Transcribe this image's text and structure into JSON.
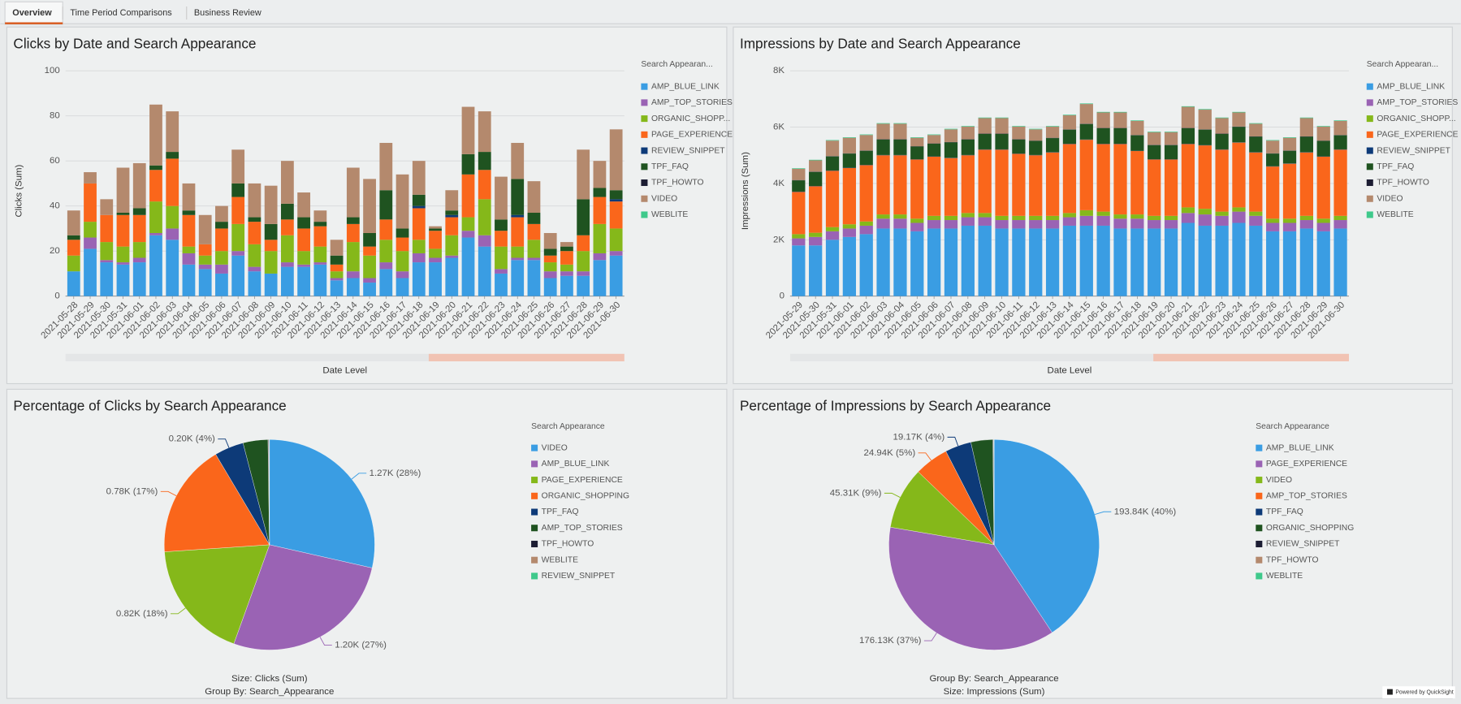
{
  "tabs": [
    "Overview",
    "Time Period Comparisons",
    "Business Review"
  ],
  "footer": "Powered by QuickSight",
  "chart_data": [
    {
      "type": "bar",
      "stacked": true,
      "title": "Clicks by Date and Search Appearance",
      "xlabel": "Date Level",
      "ylabel": "Clicks (Sum)",
      "legend_title": "Search Appearan...",
      "legend": "right",
      "grid": true,
      "ylim": [
        0,
        100
      ],
      "yticks": [
        0,
        20,
        40,
        60,
        80,
        100
      ],
      "categories": [
        "2021-05-28",
        "2021-05-29",
        "2021-05-30",
        "2021-05-31",
        "2021-06-01",
        "2021-06-02",
        "2021-06-03",
        "2021-06-04",
        "2021-06-05",
        "2021-06-06",
        "2021-06-07",
        "2021-06-08",
        "2021-06-09",
        "2021-06-10",
        "2021-06-11",
        "2021-06-12",
        "2021-06-13",
        "2021-06-14",
        "2021-06-15",
        "2021-06-16",
        "2021-06-17",
        "2021-06-18",
        "2021-06-19",
        "2021-06-20",
        "2021-06-21",
        "2021-06-22",
        "2021-06-23",
        "2021-06-24",
        "2021-06-25",
        "2021-06-26",
        "2021-06-27",
        "2021-06-28",
        "2021-06-29",
        "2021-06-30"
      ],
      "series": [
        {
          "name": "AMP_BLUE_LINK",
          "color": "#3a9de3",
          "values": [
            11,
            21,
            15,
            14,
            15,
            27,
            25,
            14,
            12,
            10,
            18,
            11,
            10,
            13,
            13,
            14,
            7,
            8,
            6,
            12,
            8,
            15,
            15,
            17,
            26,
            22,
            10,
            16,
            16,
            8,
            9,
            9,
            16,
            18
          ]
        },
        {
          "name": "AMP_TOP_STORIES",
          "color": "#9a63b4",
          "values": [
            0,
            5,
            1,
            1,
            2,
            1,
            5,
            5,
            2,
            4,
            2,
            2,
            0,
            2,
            1,
            1,
            1,
            3,
            2,
            3,
            3,
            4,
            2,
            1,
            3,
            5,
            2,
            1,
            1,
            3,
            2,
            2,
            3,
            2
          ]
        },
        {
          "name": "ORGANIC_SHOPP...",
          "color": "#85b81a",
          "values": [
            7,
            7,
            8,
            7,
            7,
            14,
            10,
            3,
            4,
            6,
            12,
            10,
            10,
            12,
            6,
            7,
            3,
            13,
            10,
            10,
            9,
            6,
            4,
            9,
            6,
            16,
            10,
            5,
            8,
            4,
            3,
            9,
            13,
            10
          ]
        },
        {
          "name": "PAGE_EXPERIENCE",
          "color": "#fa661b",
          "values": [
            7,
            17,
            12,
            14,
            12,
            14,
            21,
            14,
            5,
            10,
            12,
            10,
            5,
            7,
            10,
            9,
            3,
            8,
            4,
            9,
            6,
            14,
            8,
            8,
            19,
            13,
            7,
            13,
            7,
            3,
            6,
            7,
            12,
            12
          ]
        },
        {
          "name": "REVIEW_SNIPPET",
          "color": "#0d3a78",
          "values": [
            0,
            0,
            0,
            0,
            0,
            0,
            0,
            0,
            0,
            0,
            0,
            0,
            0,
            0,
            0,
            0,
            0,
            0,
            0,
            0,
            0,
            1,
            0,
            1,
            0,
            0,
            0,
            1,
            0,
            0,
            0,
            0,
            0,
            1
          ]
        },
        {
          "name": "TPF_FAQ",
          "color": "#1f5320",
          "values": [
            2,
            0,
            0,
            1,
            3,
            2,
            3,
            2,
            0,
            3,
            6,
            2,
            7,
            7,
            5,
            2,
            4,
            3,
            6,
            13,
            4,
            5,
            1,
            2,
            9,
            8,
            5,
            16,
            5,
            3,
            2,
            16,
            4,
            4
          ]
        },
        {
          "name": "TPF_HOWTO",
          "color": "#1c1d33",
          "values": [
            0,
            0,
            0,
            0,
            0,
            0,
            0,
            0,
            0,
            0,
            0,
            0,
            0,
            0,
            0,
            0,
            0,
            0,
            0,
            0,
            0,
            0,
            0,
            0,
            0,
            0,
            0,
            0,
            0,
            0,
            0,
            0,
            0,
            0
          ]
        },
        {
          "name": "VIDEO",
          "color": "#b4896d",
          "values": [
            11,
            5,
            7,
            20,
            20,
            27,
            18,
            12,
            13,
            7,
            15,
            15,
            17,
            19,
            11,
            5,
            7,
            22,
            24,
            21,
            24,
            15,
            1,
            9,
            21,
            18,
            19,
            16,
            14,
            7,
            2,
            22,
            12,
            27
          ]
        },
        {
          "name": "WEBLITE",
          "color": "#3fc98b",
          "values": [
            0,
            0,
            0,
            0,
            0,
            0,
            0,
            0,
            0,
            0,
            0,
            0,
            0,
            0,
            0,
            0,
            0,
            0,
            0,
            0,
            0,
            0,
            0,
            0,
            0,
            0,
            0,
            0,
            0,
            0,
            0,
            0,
            0,
            0
          ]
        }
      ]
    },
    {
      "type": "bar",
      "stacked": true,
      "title": "Impressions by Date and Search Appearance",
      "xlabel": "Date Level",
      "ylabel": "Impressions (Sum)",
      "legend_title": "Search Appearan...",
      "legend": "right",
      "grid": true,
      "ylim": [
        0,
        8000
      ],
      "yticks": [
        0,
        {
          "value": 2000,
          "label": "2K"
        },
        {
          "value": 4000,
          "label": "4K"
        },
        {
          "value": 6000,
          "label": "6K"
        },
        {
          "value": 8000,
          "label": "8K"
        }
      ],
      "categories": [
        "2021-05-29",
        "2021-05-30",
        "2021-05-31",
        "2021-06-01",
        "2021-06-02",
        "2021-06-03",
        "2021-06-04",
        "2021-06-05",
        "2021-06-06",
        "2021-06-07",
        "2021-06-08",
        "2021-06-09",
        "2021-06-10",
        "2021-06-11",
        "2021-06-12",
        "2021-06-13",
        "2021-06-14",
        "2021-06-15",
        "2021-06-16",
        "2021-06-17",
        "2021-06-18",
        "2021-06-19",
        "2021-06-20",
        "2021-06-21",
        "2021-06-22",
        "2021-06-23",
        "2021-06-24",
        "2021-06-25",
        "2021-06-26",
        "2021-06-27",
        "2021-06-28",
        "2021-06-29",
        "2021-06-30"
      ],
      "series": [
        {
          "name": "AMP_BLUE_LINK",
          "color": "#3a9de3",
          "values": [
            1800,
            1800,
            2000,
            2100,
            2200,
            2400,
            2400,
            2300,
            2400,
            2400,
            2500,
            2500,
            2400,
            2400,
            2400,
            2400,
            2500,
            2500,
            2500,
            2400,
            2400,
            2400,
            2400,
            2600,
            2500,
            2500,
            2600,
            2500,
            2300,
            2300,
            2400,
            2300,
            2400
          ]
        },
        {
          "name": "AMP_TOP_STORIES",
          "color": "#9a63b4",
          "values": [
            250,
            300,
            300,
            300,
            300,
            350,
            350,
            300,
            300,
            300,
            300,
            300,
            300,
            300,
            300,
            300,
            300,
            350,
            350,
            350,
            350,
            300,
            300,
            350,
            400,
            350,
            400,
            350,
            300,
            300,
            300,
            300,
            300
          ]
        },
        {
          "name": "ORGANIC_SHOPP...",
          "color": "#85b81a",
          "values": [
            150,
            150,
            150,
            150,
            150,
            150,
            150,
            150,
            150,
            150,
            150,
            150,
            150,
            150,
            150,
            150,
            150,
            200,
            150,
            150,
            150,
            150,
            150,
            200,
            200,
            150,
            150,
            150,
            150,
            150,
            150,
            150,
            150
          ]
        },
        {
          "name": "PAGE_EXPERIENCE",
          "color": "#fa661b",
          "values": [
            1500,
            1650,
            2000,
            2000,
            2000,
            2100,
            2100,
            2100,
            2100,
            2050,
            2050,
            2250,
            2350,
            2200,
            2150,
            2250,
            2450,
            2500,
            2400,
            2500,
            2250,
            2000,
            2000,
            2250,
            2250,
            2200,
            2300,
            2100,
            1850,
            1950,
            2250,
            2200,
            2350
          ]
        },
        {
          "name": "REVIEW_SNIPPET",
          "color": "#0d3a78",
          "values": [
            10,
            10,
            10,
            10,
            10,
            10,
            10,
            10,
            10,
            10,
            10,
            10,
            10,
            10,
            10,
            10,
            10,
            10,
            10,
            10,
            10,
            10,
            10,
            10,
            10,
            10,
            10,
            10,
            10,
            10,
            10,
            10,
            10
          ]
        },
        {
          "name": "TPF_FAQ",
          "color": "#1f5320",
          "values": [
            400,
            500,
            500,
            500,
            500,
            550,
            550,
            450,
            450,
            550,
            550,
            550,
            550,
            500,
            500,
            500,
            500,
            550,
            550,
            550,
            550,
            500,
            500,
            550,
            550,
            550,
            550,
            550,
            450,
            450,
            550,
            550,
            500
          ]
        },
        {
          "name": "TPF_HOWTO",
          "color": "#1c1d33",
          "values": [
            10,
            10,
            10,
            10,
            10,
            10,
            10,
            10,
            10,
            10,
            10,
            10,
            10,
            10,
            10,
            10,
            10,
            10,
            10,
            10,
            10,
            10,
            10,
            10,
            10,
            10,
            10,
            10,
            10,
            10,
            10,
            10,
            10
          ]
        },
        {
          "name": "VIDEO",
          "color": "#b4896d",
          "values": [
            400,
            400,
            550,
            550,
            550,
            550,
            550,
            300,
            300,
            450,
            450,
            550,
            550,
            450,
            400,
            400,
            500,
            700,
            550,
            550,
            500,
            450,
            450,
            750,
            700,
            550,
            500,
            450,
            450,
            450,
            650,
            500,
            500
          ]
        },
        {
          "name": "WEBLITE",
          "color": "#3fc98b",
          "values": [
            20,
            20,
            20,
            20,
            20,
            20,
            20,
            20,
            20,
            20,
            20,
            20,
            20,
            20,
            20,
            20,
            20,
            20,
            20,
            20,
            20,
            20,
            20,
            20,
            20,
            20,
            20,
            20,
            20,
            20,
            20,
            20,
            20
          ]
        }
      ]
    },
    {
      "type": "pie",
      "title": "Percentage of Clicks by Search Appearance",
      "legend_title": "Search Appearance",
      "legend": "right",
      "categories": [
        "VIDEO",
        "AMP_BLUE_LINK",
        "PAGE_EXPERIENCE",
        "ORGANIC_SHOPPING",
        "TPF_FAQ",
        "AMP_TOP_STORIES",
        "TPF_HOWTO",
        "WEBLITE",
        "REVIEW_SNIPPET"
      ],
      "values": [
        1270,
        1200,
        820,
        780,
        200,
        170,
        5,
        3,
        2
      ],
      "value_labels": [
        "1.27K (28%)",
        "1.20K (27%)",
        "0.82K (18%)",
        "0.78K (17%)",
        "0.20K (4%)",
        null,
        null,
        null,
        null
      ],
      "colors": [
        "#3a9de3",
        "#9a63b4",
        "#85b81a",
        "#fa661b",
        "#0d3a78",
        "#1f5320",
        "#1c1d33",
        "#b4896d",
        "#3fc98b"
      ],
      "footnotes": [
        "Size: Clicks (Sum)",
        "Group By: Search_Appearance"
      ]
    },
    {
      "type": "pie",
      "title": "Percentage of Impressions by Search Appearance",
      "legend_title": "Search Appearance",
      "legend": "right",
      "categories": [
        "AMP_BLUE_LINK",
        "PAGE_EXPERIENCE",
        "VIDEO",
        "AMP_TOP_STORIES",
        "TPF_FAQ",
        "ORGANIC_SHOPPING",
        "REVIEW_SNIPPET",
        "TPF_HOWTO",
        "WEBLITE"
      ],
      "values": [
        193840,
        176130,
        45310,
        24940,
        19170,
        16000,
        500,
        300,
        100
      ],
      "value_labels": [
        "193.84K (40%)",
        "176.13K (37%)",
        "45.31K (9%)",
        "24.94K (5%)",
        "19.17K (4%)",
        null,
        null,
        null,
        null
      ],
      "colors": [
        "#3a9de3",
        "#9a63b4",
        "#85b81a",
        "#fa661b",
        "#0d3a78",
        "#1f5320",
        "#1c1d33",
        "#b4896d",
        "#3fc98b"
      ],
      "footnotes": [
        "Group By: Search_Appearance",
        "Size: Impressions (Sum)"
      ]
    }
  ]
}
